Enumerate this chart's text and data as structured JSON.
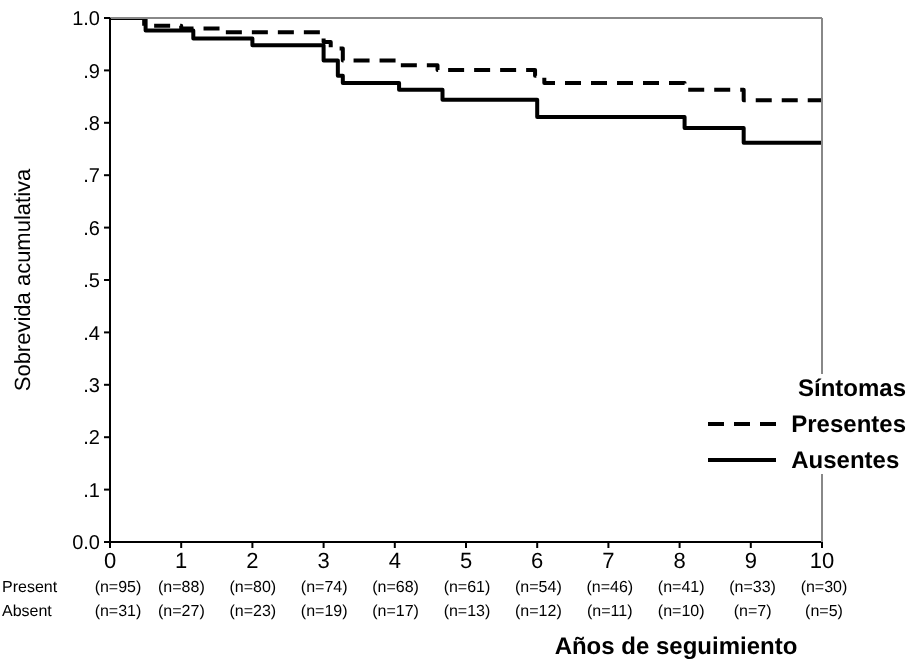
{
  "chart_data": {
    "type": "step",
    "ylabel": "Sobrevida acumulativa",
    "xlabel": "Años de seguimiento",
    "legend_title": "Síntomas",
    "legend": "bottom right",
    "marker": "none",
    "xlim": [
      0,
      10
    ],
    "xticks": [
      0,
      1,
      2,
      3,
      4,
      5,
      6,
      7,
      8,
      9,
      10
    ],
    "ylim": [
      0,
      1
    ],
    "yticks": [
      {
        "value": 0,
        "label": "0.0"
      },
      {
        "value": 0.1,
        "label": ".1"
      },
      {
        "value": 0.2,
        "label": ".2"
      },
      {
        "value": 0.3,
        "label": ".3"
      },
      {
        "value": 0.4,
        "label": ".4"
      },
      {
        "value": 0.5,
        "label": ".5"
      },
      {
        "value": 0.6,
        "label": ".6"
      },
      {
        "value": 0.7,
        "label": ".7"
      },
      {
        "value": 0.8,
        "label": ".8"
      },
      {
        "value": 0.9,
        "label": ".9"
      },
      {
        "value": 1,
        "label": "1.0"
      }
    ],
    "series": [
      {
        "name": "Presentes",
        "color": "#000000",
        "line_style": "dashed",
        "x": [
          0,
          0.48,
          1.0,
          1.6,
          3.0,
          3.1,
          3.27,
          4.06,
          4.6,
          5.97,
          6.1,
          8.07,
          8.9,
          10
        ],
        "values": [
          1,
          0.985,
          0.98,
          0.973,
          0.954,
          0.942,
          0.919,
          0.91,
          0.901,
          0.89,
          0.876,
          0.863,
          0.843,
          0.843
        ]
      },
      {
        "name": "Ausentes",
        "color": "#000000",
        "line_style": "solid",
        "x": [
          0,
          0.5,
          1.17,
          2.0,
          3.0,
          3.2,
          3.27,
          4.06,
          4.67,
          6.0,
          8.07,
          8.9,
          10
        ],
        "values": [
          1,
          0.976,
          0.961,
          0.948,
          0.919,
          0.89,
          0.876,
          0.863,
          0.844,
          0.811,
          0.79,
          0.762,
          0.762
        ]
      }
    ],
    "annotations": [
      "Present",
      "(n=95)",
      "(n=88)",
      "(n=80)",
      "(n=74)",
      "(n=68)",
      "(n=61)",
      "(n=54)",
      "(n=46)",
      "(n=41)",
      "(n=33)",
      "(n=30)",
      "Absent",
      "(n=31)",
      "(n=27)",
      "(n=23)",
      "(n=19)",
      "(n=17)",
      "(n=13)",
      "(n=12)",
      "(n=11)",
      "(n=10)",
      "(n=7)",
      "(n=5)"
    ]
  }
}
